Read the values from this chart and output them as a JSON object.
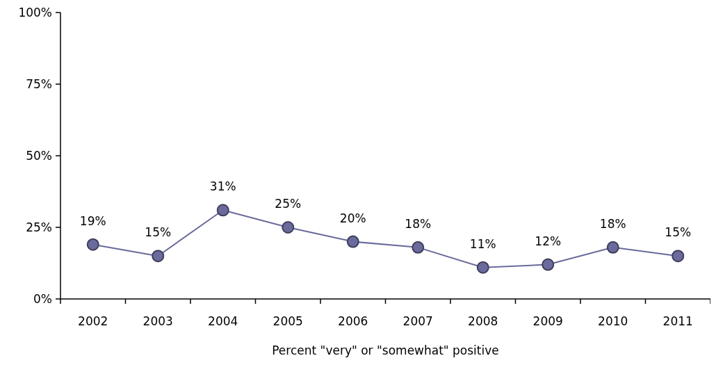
{
  "chart_data": {
    "type": "line",
    "xlabel": "Percent \"very\" or \"somewhat\" positive",
    "categories": [
      "2002",
      "2003",
      "2004",
      "2005",
      "2006",
      "2007",
      "2008",
      "2009",
      "2010",
      "2011"
    ],
    "series": [
      {
        "color": "#6a6a9c",
        "values": [
          19,
          15,
          31,
          25,
          20,
          18,
          11,
          12,
          18,
          15
        ]
      }
    ],
    "ylim": [
      0,
      100
    ],
    "yticks": [
      {
        "value": 0,
        "label": "0%"
      },
      {
        "value": 25,
        "label": "25%"
      },
      {
        "value": 50,
        "label": "50%"
      },
      {
        "value": 75,
        "label": "75%"
      },
      {
        "value": 100,
        "label": "100%"
      }
    ],
    "value_labels": [
      "19%",
      "15%",
      "31%",
      "25%",
      "20%",
      "18%",
      "11%",
      "12%",
      "18%",
      "15%"
    ],
    "marker": "circle",
    "grid": false
  }
}
